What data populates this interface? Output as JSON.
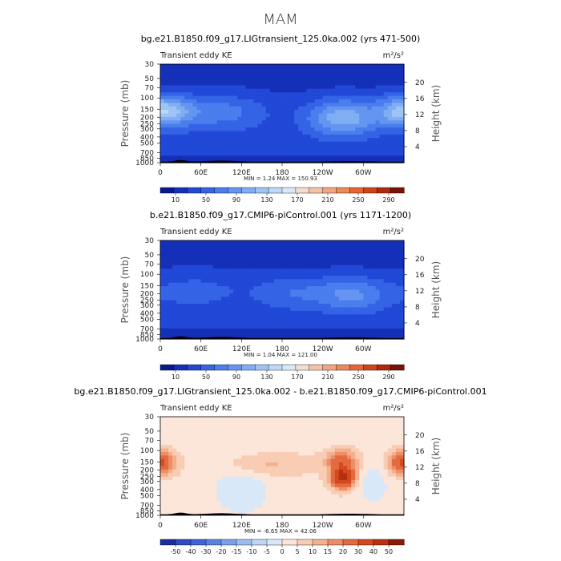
{
  "page": {
    "title": "MAM"
  },
  "palettes": {
    "fullfield": [
      "#0a1a8c",
      "#1530b8",
      "#2148d6",
      "#3563e6",
      "#4a7ded",
      "#6495f0",
      "#7faef3",
      "#9cc4f6",
      "#bdd8f8",
      "#d9e8f8",
      "#f5dcd0",
      "#f4c2a8",
      "#f2a680",
      "#ed8859",
      "#e36634",
      "#cf4418",
      "#ae2a0c",
      "#7a1206"
    ],
    "diff": [
      "#1b2e9e",
      "#2c4bc4",
      "#3d64d8",
      "#5a82e3",
      "#7aa0ec",
      "#9dbcf2",
      "#c0d6f5",
      "#d9e8f8",
      "#fbe6d9",
      "#f8cdb4",
      "#f4b08e",
      "#ee8e66",
      "#e46a3f",
      "#d34a1f",
      "#b83010",
      "#8c1a08"
    ]
  },
  "chart_data": [
    {
      "type": "heatmap",
      "title": "bg.e21.B1850.f09_g17.LIGtransient_125.0ka.002 (yrs 471-500)",
      "subtitle": "Transient eddy KE",
      "units": "m²/s²",
      "ylabel": "Pressure (mb)",
      "ylabel_right": "Height (km)",
      "x_ticks": [
        "0",
        "60E",
        "120E",
        "180",
        "120W",
        "60W"
      ],
      "x_range": [
        0,
        360
      ],
      "y_ticks": [
        "30",
        "50",
        "70",
        "100",
        "150",
        "200",
        "250",
        "300",
        "400",
        "500",
        "700",
        "850",
        "1000"
      ],
      "y_values": [
        30,
        50,
        70,
        100,
        150,
        200,
        250,
        300,
        400,
        500,
        700,
        850,
        1000
      ],
      "y_scale": "log",
      "y_range": [
        30,
        1000
      ],
      "height_ticks": [
        "4",
        "8",
        "12",
        "16",
        "20"
      ],
      "height_km": [
        4,
        8,
        12,
        16,
        20
      ],
      "stats": "MIN =     1.24   MAX = 150.93",
      "colorbar_ticks": [
        "10",
        "50",
        "90",
        "130",
        "170",
        "210",
        "250",
        "290"
      ],
      "colorbar_levels": [
        0,
        10,
        30,
        50,
        70,
        90,
        110,
        130,
        150,
        170,
        190,
        210,
        230,
        250,
        270,
        290,
        310
      ],
      "palette": "fullfield",
      "min": 1.24,
      "max": 150.93
    },
    {
      "type": "heatmap",
      "title": "b.e21.B1850.f09_g17.CMIP6-piControl.001 (yrs 1171-1200)",
      "subtitle": "Transient eddy KE",
      "units": "m²/s²",
      "ylabel": "Pressure (mb)",
      "ylabel_right": "Height (km)",
      "x_ticks": [
        "0",
        "60E",
        "120E",
        "180",
        "120W",
        "60W"
      ],
      "x_range": [
        0,
        360
      ],
      "y_ticks": [
        "30",
        "50",
        "70",
        "100",
        "150",
        "200",
        "250",
        "300",
        "400",
        "500",
        "700",
        "850",
        "1000"
      ],
      "y_values": [
        30,
        50,
        70,
        100,
        150,
        200,
        250,
        300,
        400,
        500,
        700,
        850,
        1000
      ],
      "y_scale": "log",
      "y_range": [
        30,
        1000
      ],
      "height_ticks": [
        "4",
        "8",
        "12",
        "16",
        "20"
      ],
      "height_km": [
        4,
        8,
        12,
        16,
        20
      ],
      "stats": "MIN =     1.04   MAX = 121.00",
      "colorbar_ticks": [
        "10",
        "50",
        "90",
        "130",
        "170",
        "210",
        "250",
        "290"
      ],
      "colorbar_levels": [
        0,
        10,
        30,
        50,
        70,
        90,
        110,
        130,
        150,
        170,
        190,
        210,
        230,
        250,
        270,
        290,
        310
      ],
      "palette": "fullfield",
      "min": 1.04,
      "max": 121.0
    },
    {
      "type": "heatmap",
      "title": "bg.e21.B1850.f09_g17.LIGtransient_125.0ka.002 - b.e21.B1850.f09_g17.CMIP6-piControl.001",
      "subtitle": "Transient eddy KE",
      "units": "m²/s²",
      "ylabel": "Pressure (mb)",
      "ylabel_right": "Height (km)",
      "x_ticks": [
        "0",
        "60E",
        "120E",
        "180",
        "120W",
        "60W"
      ],
      "x_range": [
        0,
        360
      ],
      "y_ticks": [
        "30",
        "50",
        "70",
        "100",
        "150",
        "200",
        "250",
        "300",
        "400",
        "500",
        "700",
        "850",
        "1000"
      ],
      "y_values": [
        30,
        50,
        70,
        100,
        150,
        200,
        250,
        300,
        400,
        500,
        700,
        850,
        1000
      ],
      "y_scale": "log",
      "y_range": [
        30,
        1000
      ],
      "height_ticks": [
        "4",
        "8",
        "12",
        "16",
        "20"
      ],
      "height_km": [
        4,
        8,
        12,
        16,
        20
      ],
      "stats": "MIN =    -6.65   MAX =  42.06",
      "colorbar_ticks": [
        "-50",
        "-40",
        "-30",
        "-20",
        "-15",
        "-10",
        "-5",
        "0",
        "5",
        "10",
        "15",
        "20",
        "30",
        "40",
        "50"
      ],
      "colorbar_levels": [
        -60,
        -50,
        -40,
        -30,
        -20,
        -15,
        -10,
        -5,
        0,
        5,
        10,
        15,
        20,
        30,
        40,
        50,
        60
      ],
      "palette": "diff",
      "min": -6.65,
      "max": 42.06
    }
  ]
}
